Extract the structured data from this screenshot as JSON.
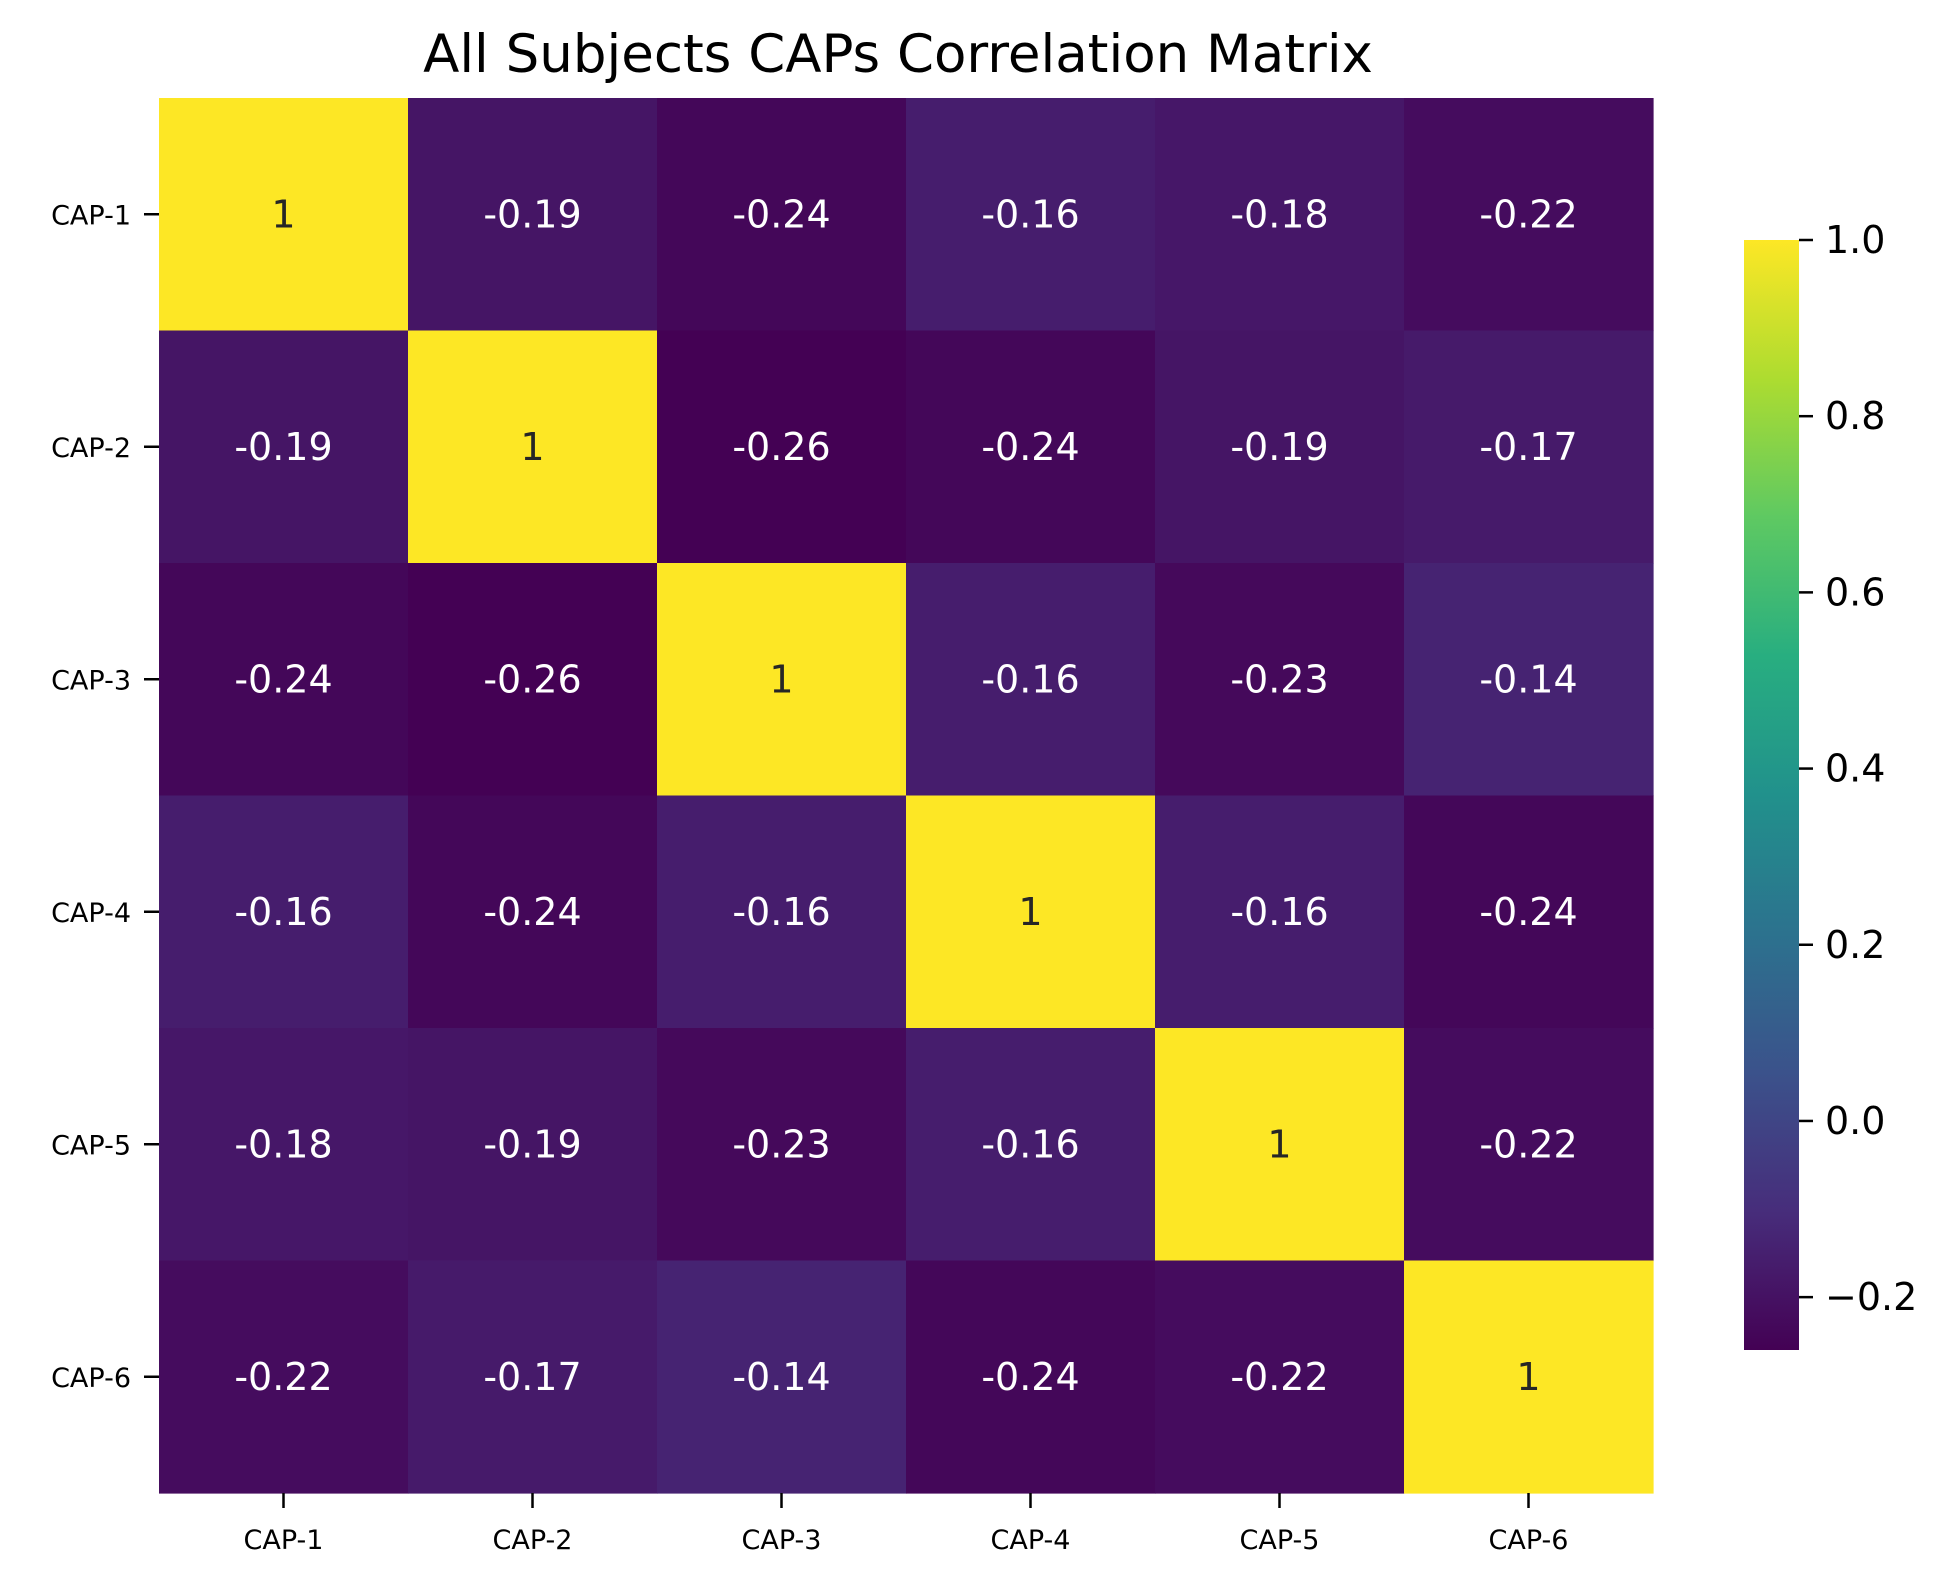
{
  "chart_data": {
    "type": "heatmap",
    "title": "All Subjects CAPs Correlation Matrix",
    "xlabel": "",
    "ylabel": "",
    "x_categories": [
      "CAP-1",
      "CAP-2",
      "CAP-3",
      "CAP-4",
      "CAP-5",
      "CAP-6"
    ],
    "y_categories": [
      "CAP-1",
      "CAP-2",
      "CAP-3",
      "CAP-4",
      "CAP-5",
      "CAP-6"
    ],
    "values": [
      [
        1,
        -0.19,
        -0.24,
        -0.16,
        -0.18,
        -0.22
      ],
      [
        -0.19,
        1,
        -0.26,
        -0.24,
        -0.19,
        -0.17
      ],
      [
        -0.24,
        -0.26,
        1,
        -0.16,
        -0.23,
        -0.14
      ],
      [
        -0.16,
        -0.24,
        -0.16,
        1,
        -0.16,
        -0.24
      ],
      [
        -0.18,
        -0.19,
        -0.23,
        -0.16,
        1,
        -0.22
      ],
      [
        -0.22,
        -0.17,
        -0.14,
        -0.24,
        -0.22,
        1
      ]
    ],
    "annotations": [
      [
        "1",
        "-0.19",
        "-0.24",
        "-0.16",
        "-0.18",
        "-0.22"
      ],
      [
        "-0.19",
        "1",
        "-0.26",
        "-0.24",
        "-0.19",
        "-0.17"
      ],
      [
        "-0.24",
        "-0.26",
        "1",
        "-0.16",
        "-0.23",
        "-0.14"
      ],
      [
        "-0.16",
        "-0.24",
        "-0.16",
        "1",
        "-0.16",
        "-0.24"
      ],
      [
        "-0.18",
        "-0.19",
        "-0.23",
        "-0.16",
        "1",
        "-0.22"
      ],
      [
        "-0.22",
        "-0.17",
        "-0.14",
        "-0.24",
        "-0.22",
        "1"
      ]
    ],
    "colormap": "viridis",
    "vmin": -0.26,
    "vmax": 1.0,
    "colorbar": {
      "ticks": [
        1.0,
        0.8,
        0.6,
        0.4,
        0.2,
        0.0,
        -0.2
      ],
      "tick_labels": [
        "1.0",
        "0.8",
        "0.6",
        "0.4",
        "0.2",
        "0.0",
        "−0.2"
      ]
    },
    "grid": false,
    "legend": "colorbar-right"
  }
}
